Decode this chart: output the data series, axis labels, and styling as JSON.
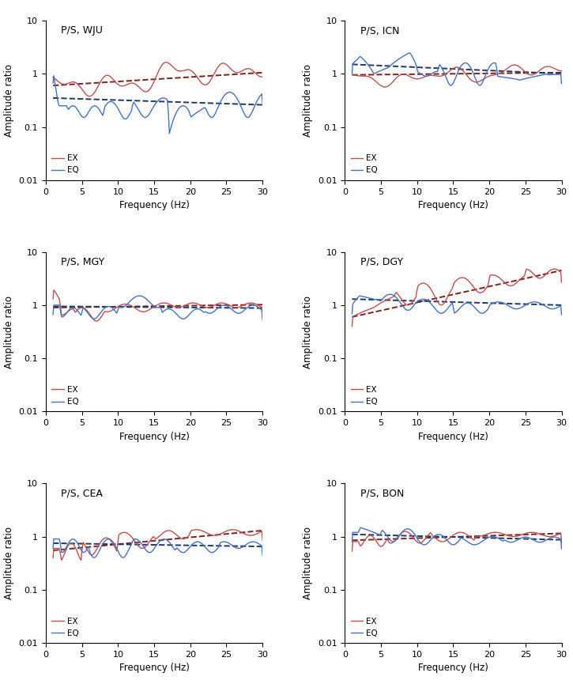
{
  "panels": [
    {
      "title": "P/S, WJU",
      "row": 0,
      "col": 0
    },
    {
      "title": "P/S, ICN",
      "row": 0,
      "col": 1
    },
    {
      "title": "P/S, MGY",
      "row": 1,
      "col": 0
    },
    {
      "title": "P/S, DGY",
      "row": 1,
      "col": 1
    },
    {
      "title": "P/S, CEA",
      "row": 2,
      "col": 0
    },
    {
      "title": "P/S, BON",
      "row": 2,
      "col": 1
    }
  ],
  "ex_color": "#c0504d",
  "eq_color": "#4472c4",
  "trend_ex_color": "#7f2020",
  "trend_eq_color": "#1f3864",
  "xlabel": "Frequency (Hz)",
  "ylabel": "Amplitude ratio",
  "ylim_log": [
    0.01,
    10
  ],
  "xlim": [
    0,
    30
  ],
  "yticks": [
    0.01,
    0.1,
    1,
    10
  ],
  "xticks": [
    0,
    5,
    10,
    15,
    20,
    25,
    30
  ],
  "legend_ex": "EX",
  "legend_eq": "EQ"
}
